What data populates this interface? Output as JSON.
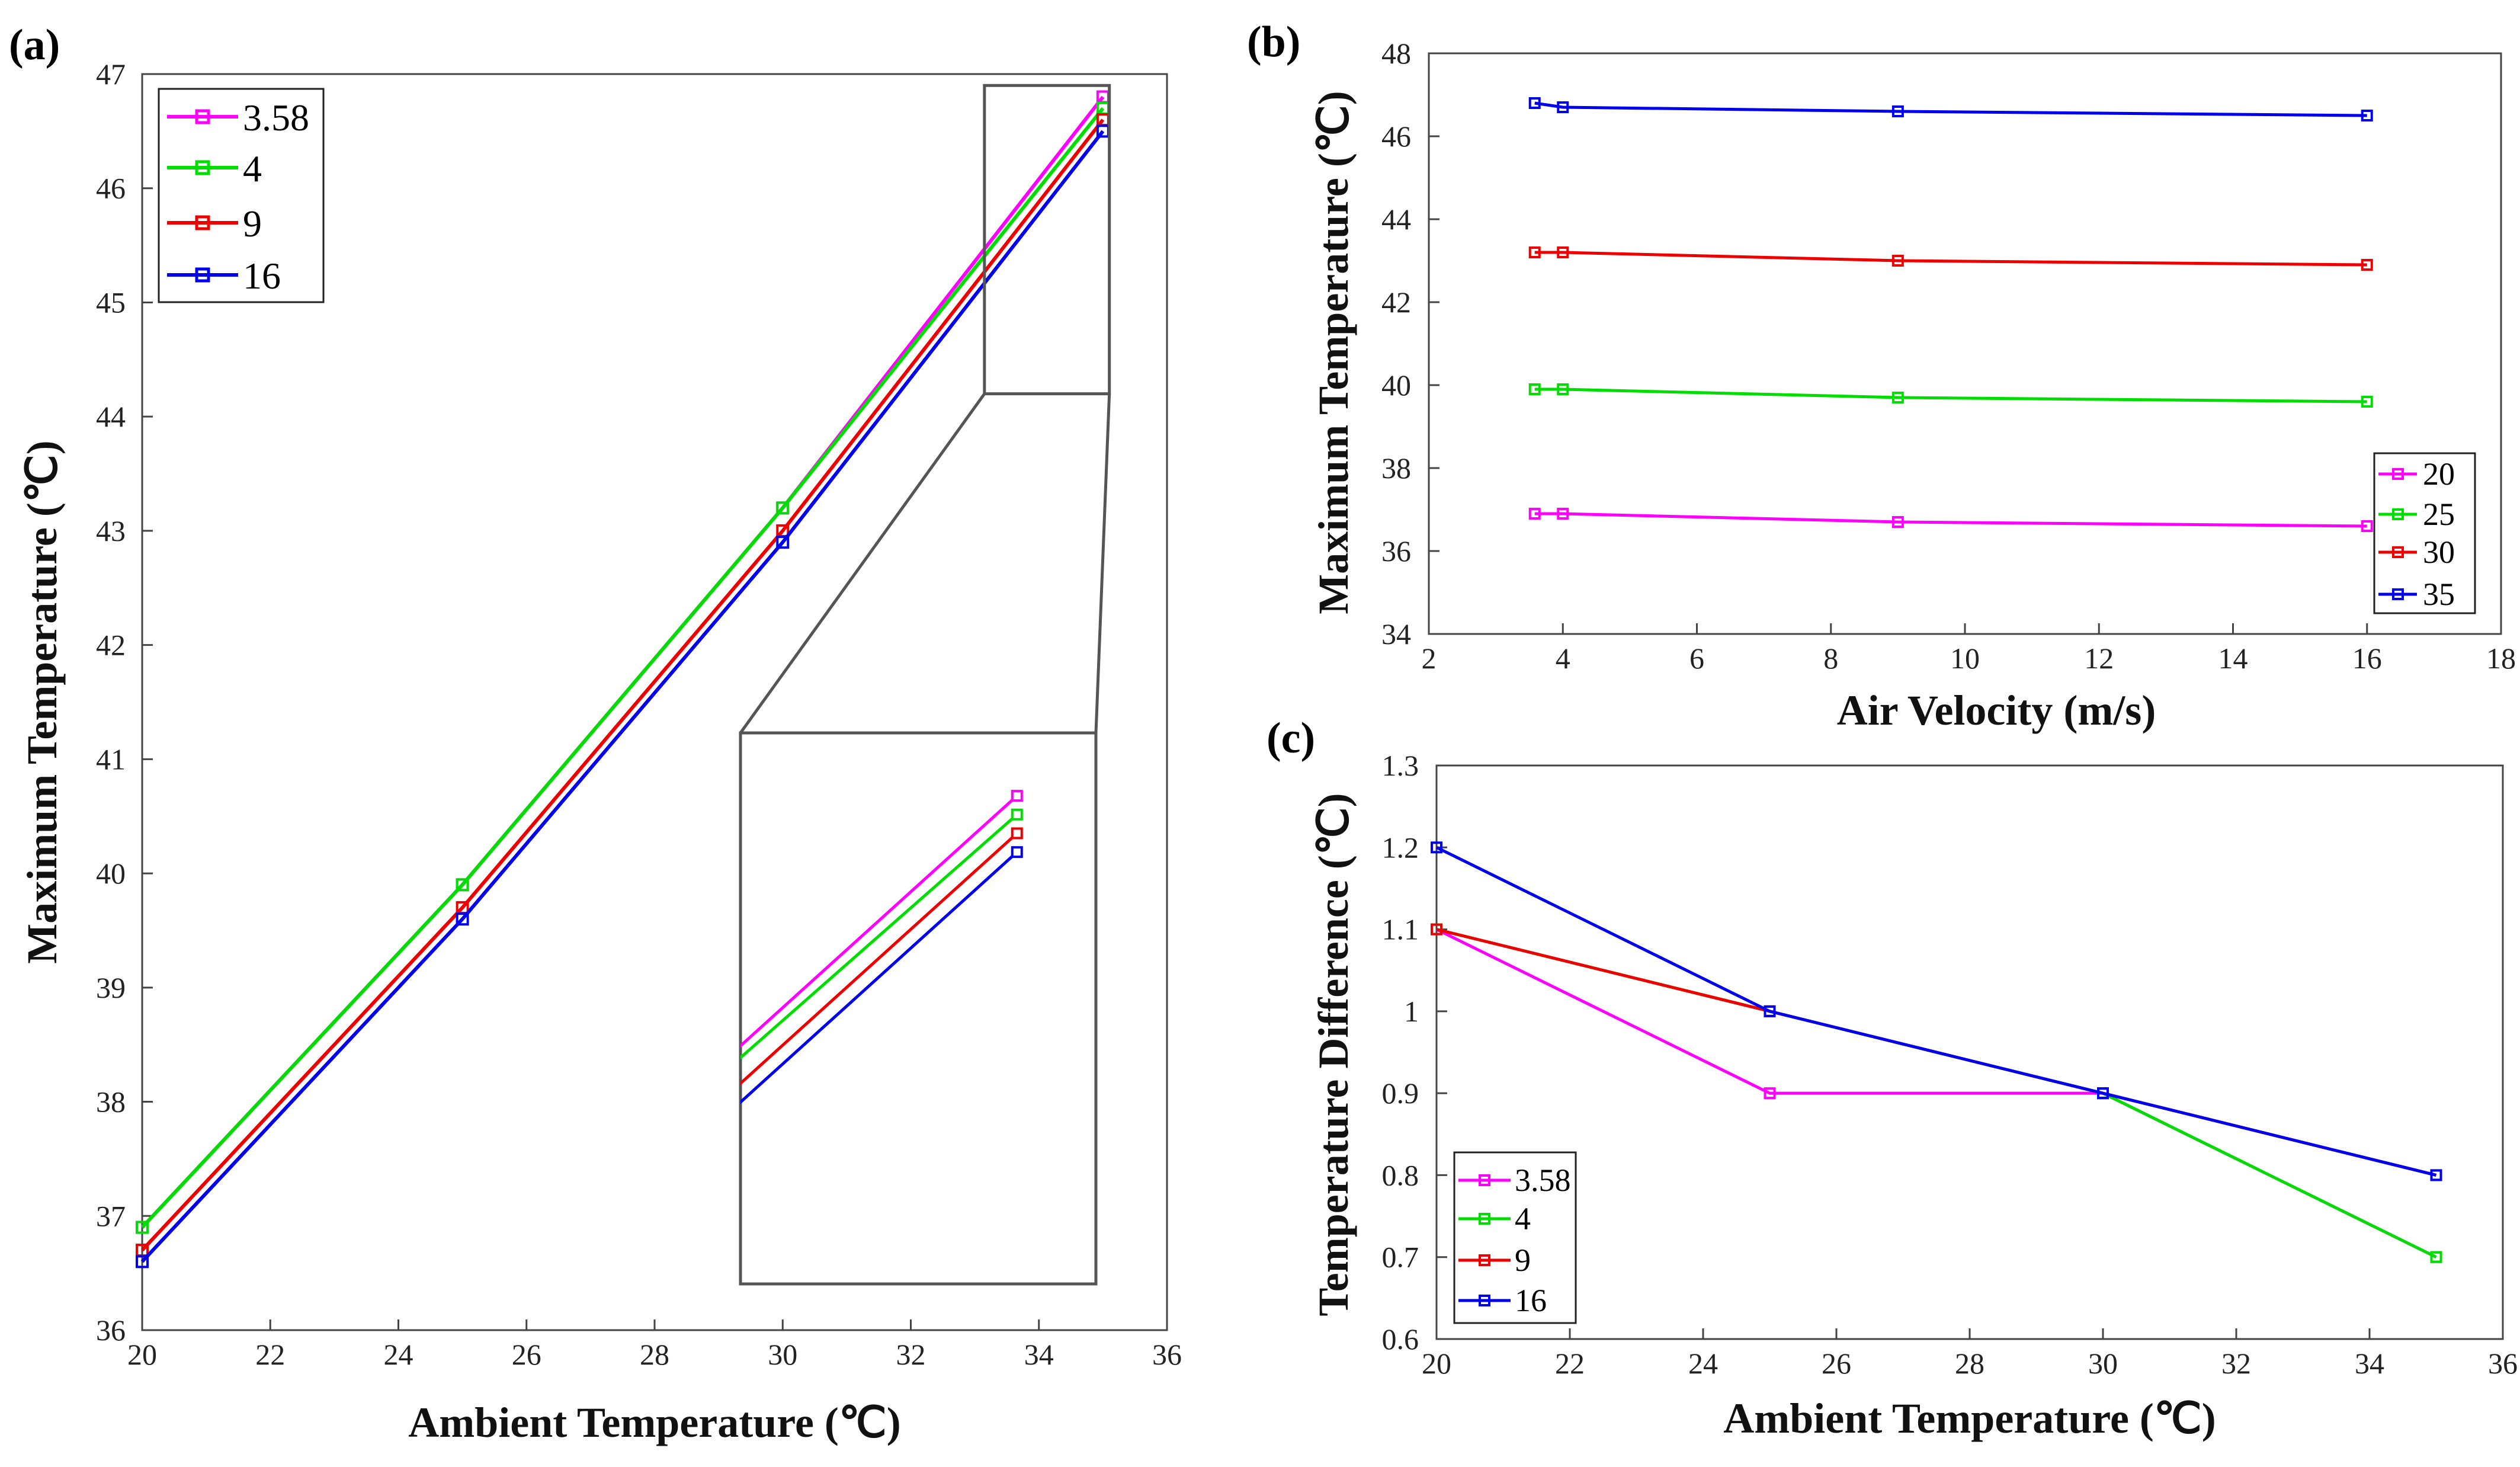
{
  "colors": {
    "3.58": "#ff00ff",
    "4": "#00dd00",
    "9": "#ee0000",
    "16": "#0000ee",
    "20": "#ff00ff",
    "25": "#00dd00",
    "30": "#ee0000",
    "35": "#0000ee"
  },
  "chart_data": [
    {
      "id": "a",
      "panel_label": "(a)",
      "type": "line",
      "xlabel": "Ambient Temperature (℃)",
      "ylabel": "Maximum Temperature (℃)",
      "xlim": [
        20,
        36
      ],
      "ylim": [
        36,
        47
      ],
      "xticks": [
        "20",
        "22",
        "24",
        "26",
        "28",
        "30",
        "32",
        "34",
        "36"
      ],
      "yticks": [
        "36",
        "37",
        "38",
        "39",
        "40",
        "41",
        "42",
        "43",
        "44",
        "45",
        "46",
        "47"
      ],
      "legend_position": "top-left",
      "x": [
        20,
        25,
        30,
        35
      ],
      "series": [
        {
          "name": "3.58",
          "values": [
            36.9,
            39.9,
            43.2,
            46.8
          ]
        },
        {
          "name": "4",
          "values": [
            36.9,
            39.9,
            43.2,
            46.7
          ]
        },
        {
          "name": "9",
          "values": [
            36.7,
            39.7,
            43.0,
            46.6
          ]
        },
        {
          "name": "16",
          "values": [
            36.6,
            39.6,
            42.9,
            46.5
          ]
        }
      ],
      "inset": {
        "xlim": [
          33.15,
          35.1
        ],
        "ylim": [
          44.2,
          46.9
        ]
      }
    },
    {
      "id": "b",
      "panel_label": "(b)",
      "type": "line",
      "xlabel": "Air Velocity (m/s)",
      "ylabel": "Maximum Temperature (℃)",
      "xlim": [
        2,
        18
      ],
      "ylim": [
        34,
        48
      ],
      "xticks": [
        "2",
        "4",
        "6",
        "8",
        "10",
        "12",
        "14",
        "16",
        "18"
      ],
      "yticks": [
        "34",
        "36",
        "38",
        "40",
        "42",
        "44",
        "46",
        "48"
      ],
      "legend_position": "bottom-right",
      "x": [
        3.58,
        4,
        9,
        16
      ],
      "series": [
        {
          "name": "20",
          "values": [
            36.9,
            36.9,
            36.7,
            36.6
          ]
        },
        {
          "name": "25",
          "values": [
            39.9,
            39.9,
            39.7,
            39.6
          ]
        },
        {
          "name": "30",
          "values": [
            43.2,
            43.2,
            43.0,
            42.9
          ]
        },
        {
          "name": "35",
          "values": [
            46.8,
            46.7,
            46.6,
            46.5
          ]
        }
      ]
    },
    {
      "id": "c",
      "panel_label": "(c)",
      "type": "line",
      "xlabel": "Ambient Temperature (℃)",
      "ylabel": "Temperature Difference (℃)",
      "xlim": [
        20,
        36
      ],
      "ylim": [
        0.6,
        1.3
      ],
      "xticks": [
        "20",
        "22",
        "24",
        "26",
        "28",
        "30",
        "32",
        "34",
        "36"
      ],
      "yticks": [
        "0.6",
        "0.7",
        "0.8",
        "0.9",
        "1",
        "1.1",
        "1.2",
        "1.3"
      ],
      "legend_position": "bottom-left",
      "x": [
        20,
        25,
        30,
        35
      ],
      "series": [
        {
          "name": "3.58",
          "values": [
            1.1,
            0.9,
            0.9,
            0.7
          ]
        },
        {
          "name": "4",
          "values": [
            1.1,
            1.0,
            0.9,
            0.7
          ]
        },
        {
          "name": "9",
          "values": [
            1.1,
            1.0,
            0.9,
            0.8
          ]
        },
        {
          "name": "16",
          "values": [
            1.2,
            1.0,
            0.9,
            0.8
          ]
        }
      ]
    }
  ]
}
